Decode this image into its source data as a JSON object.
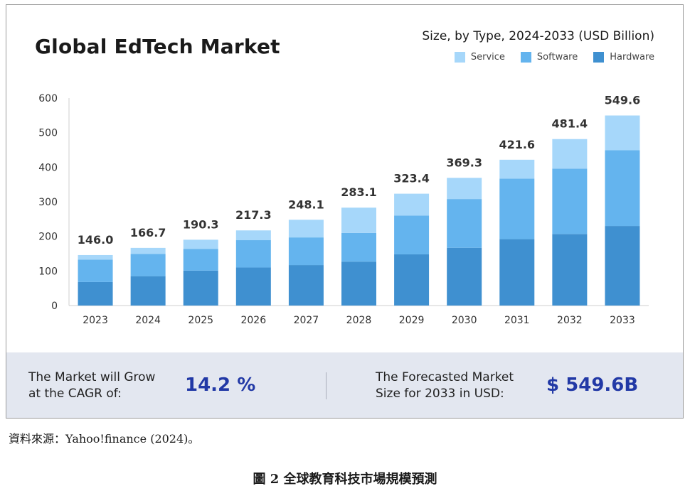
{
  "chart_data": {
    "type": "bar",
    "stacked": true,
    "title": "Global EdTech Market",
    "subtitle": "Size, by Type, 2024-2033 (USD Billion)",
    "categories": [
      "2023",
      "2024",
      "2025",
      "2026",
      "2027",
      "2028",
      "2029",
      "2030",
      "2031",
      "2032",
      "2033"
    ],
    "series": [
      {
        "name": "Hardware",
        "color": "#3f90d0",
        "values": [
          68,
          85,
          101,
          110,
          117,
          127,
          148,
          167,
          192,
          207,
          230
        ]
      },
      {
        "name": "Software",
        "color": "#64b4ee",
        "values": [
          65,
          64,
          63,
          79,
          80,
          83,
          112,
          141,
          175,
          189,
          219
        ]
      },
      {
        "name": "Service",
        "color": "#a6d7fa",
        "values": [
          13,
          17.7,
          26.3,
          28.3,
          51.1,
          73.1,
          63.4,
          61.3,
          54.6,
          85.4,
          100.6
        ]
      }
    ],
    "totals": [
      "146.0",
      "166.7",
      "190.3",
      "217.3",
      "248.1",
      "283.1",
      "323.4",
      "369.3",
      "421.6",
      "481.4",
      "549.6"
    ],
    "ylim": [
      0,
      600
    ],
    "yticks": [
      0,
      100,
      200,
      300,
      400,
      500,
      600
    ],
    "xlabel": "",
    "ylabel": "",
    "grid": false,
    "legend_position": "top-right"
  },
  "footer": {
    "cagr_label_line1": "The Market will Grow",
    "cagr_label_line2": "at the CAGR of:",
    "cagr_value": "14.2 %",
    "forecast_label_line1": "The Forecasted Market",
    "forecast_label_line2": "Size for 2033 in USD:",
    "forecast_value": "$ 549.6B"
  },
  "source": "資料來源：Yahoo!finance (2024)。",
  "caption": "圖 2  全球教育科技市場規模預測"
}
